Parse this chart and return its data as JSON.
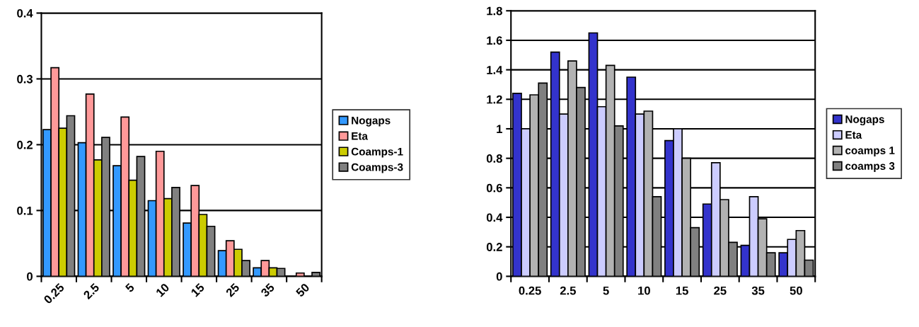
{
  "chart_data": [
    {
      "type": "bar",
      "categories": [
        "0.25",
        "2.5",
        "5",
        "10",
        "15",
        "25",
        "35",
        "50"
      ],
      "ylim": [
        0,
        0.4
      ],
      "yticks": [
        0,
        0.1,
        0.2,
        0.3,
        0.4
      ],
      "grid": "y",
      "legend": "right",
      "series": [
        {
          "name": "Nogaps",
          "color": "#3399ff",
          "values": [
            0.223,
            0.203,
            0.168,
            0.115,
            0.081,
            0.039,
            0.013,
            null
          ]
        },
        {
          "name": "Eta",
          "color": "#ff9999",
          "values": [
            0.317,
            0.277,
            0.242,
            0.19,
            0.138,
            0.054,
            0.024,
            0.005
          ]
        },
        {
          "name": "Coamps-1",
          "color": "#cccc00",
          "values": [
            0.225,
            0.177,
            0.146,
            0.118,
            0.094,
            0.041,
            0.013,
            null
          ]
        },
        {
          "name": "Coamps-3",
          "color": "#808080",
          "values": [
            0.244,
            0.211,
            0.182,
            0.135,
            0.076,
            0.024,
            0.012,
            0.006
          ]
        }
      ]
    },
    {
      "type": "bar",
      "categories": [
        "0.25",
        "2.5",
        "5",
        "10",
        "15",
        "25",
        "35",
        "50"
      ],
      "ylim": [
        0,
        1.8
      ],
      "yticks": [
        0,
        0.2,
        0.4,
        0.6,
        0.8,
        1,
        1.2,
        1.4,
        1.6,
        1.8
      ],
      "grid": "y",
      "legend": "right",
      "series": [
        {
          "name": "Nogaps",
          "color": "#3333cc",
          "values": [
            1.24,
            1.52,
            1.65,
            1.35,
            0.92,
            0.49,
            0.21,
            0.16
          ]
        },
        {
          "name": "Eta",
          "color": "#ccccff",
          "values": [
            1.0,
            1.1,
            1.15,
            1.1,
            1.0,
            0.77,
            0.54,
            0.25
          ]
        },
        {
          "name": "coamps 1",
          "color": "#b2b2b2",
          "values": [
            1.23,
            1.46,
            1.43,
            1.12,
            0.8,
            0.52,
            0.39,
            0.31
          ]
        },
        {
          "name": "coamps 3",
          "color": "#808080",
          "values": [
            1.31,
            1.28,
            1.02,
            0.54,
            0.33,
            0.23,
            0.16,
            0.11
          ]
        }
      ]
    }
  ]
}
